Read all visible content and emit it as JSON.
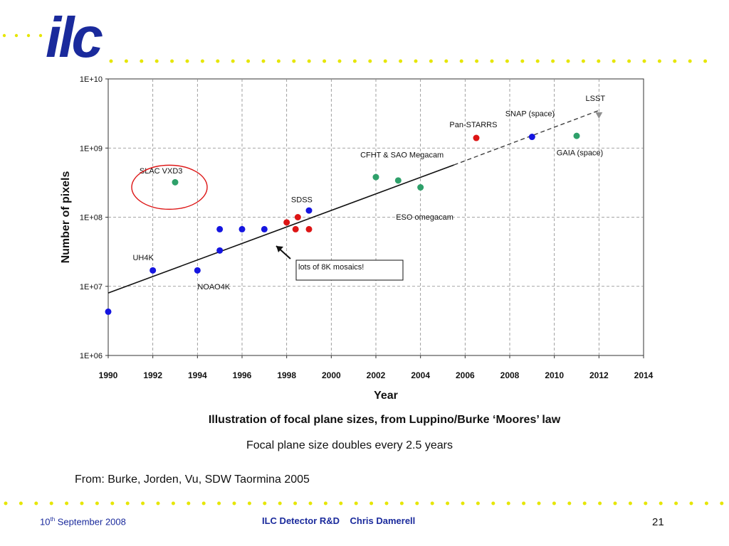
{
  "logo": {
    "text": "ilc"
  },
  "brand_colors": {
    "navy": "#1a2a9c",
    "dots": "#e6e600"
  },
  "chart_data": {
    "type": "scatter",
    "xlabel": "Year",
    "ylabel": "Number of pixels",
    "xlim": [
      1990,
      2014
    ],
    "ylim": [
      1000000,
      10000000000
    ],
    "yscale": "log",
    "grid": true,
    "x_ticks": [
      "1990",
      "1992",
      "1994",
      "1996",
      "1998",
      "2000",
      "2002",
      "2004",
      "2006",
      "2008",
      "2010",
      "2012",
      "2014"
    ],
    "y_ticks": [
      "1E+06",
      "1E+07",
      "1E+08",
      "1E+09",
      "1E+10"
    ],
    "points": [
      {
        "x": 1990,
        "y": 4300000,
        "color": "#1515e0"
      },
      {
        "x": 1992,
        "y": 17000000,
        "color": "#1515e0"
      },
      {
        "x": 1993,
        "y": 320000000,
        "color": "#2ea06a"
      },
      {
        "x": 1994,
        "y": 17000000,
        "color": "#1515e0"
      },
      {
        "x": 1995,
        "y": 33000000,
        "color": "#1515e0"
      },
      {
        "x": 1995,
        "y": 67000000,
        "color": "#1515e0"
      },
      {
        "x": 1996,
        "y": 67000000,
        "color": "#1515e0"
      },
      {
        "x": 1997,
        "y": 67000000,
        "color": "#1515e0"
      },
      {
        "x": 1998,
        "y": 84000000,
        "color": "#dd1515"
      },
      {
        "x": 1998.4,
        "y": 67000000,
        "color": "#dd1515"
      },
      {
        "x": 1998.5,
        "y": 100000000,
        "color": "#dd1515"
      },
      {
        "x": 1999,
        "y": 67000000,
        "color": "#dd1515"
      },
      {
        "x": 1999,
        "y": 125000000,
        "color": "#1515e0"
      },
      {
        "x": 2002,
        "y": 380000000,
        "color": "#2ea06a"
      },
      {
        "x": 2003,
        "y": 340000000,
        "color": "#2ea06a"
      },
      {
        "x": 2004,
        "y": 270000000,
        "color": "#2ea06a"
      },
      {
        "x": 2006.5,
        "y": 1400000000,
        "color": "#dd1515"
      },
      {
        "x": 2009,
        "y": 1450000000,
        "color": "#1515e0"
      },
      {
        "x": 2011,
        "y": 1500000000,
        "color": "#2ea06a"
      },
      {
        "x": 2012,
        "y": 3000000000,
        "color": "#909090",
        "marker": "triangle"
      }
    ],
    "trend_solid": [
      [
        1990,
        8000000
      ],
      [
        2005.5,
        570000000
      ]
    ],
    "trend_dashed": [
      [
        2005.5,
        570000000
      ],
      [
        2012,
        3500000000
      ]
    ],
    "annotations": [
      {
        "text": "SLAC VXD3",
        "x": 1991.4,
        "y": 430000000
      },
      {
        "text": "UH4K",
        "x": 1991.1,
        "y": 24000000
      },
      {
        "text": "NOAO4K",
        "x": 1994,
        "y": 9000000
      },
      {
        "text": "SDSS",
        "x": 1998.2,
        "y": 165000000
      },
      {
        "text": "CFHT & SAO Megacam",
        "x": 2001.3,
        "y": 730000000
      },
      {
        "text": "ESO omegacam",
        "x": 2002.9,
        "y": 92000000
      },
      {
        "text": "Pan-STARRS",
        "x": 2005.3,
        "y": 2000000000
      },
      {
        "text": "SNAP (space)",
        "x": 2007.8,
        "y": 2900000000
      },
      {
        "text": "LSST",
        "x": 2011.4,
        "y": 4800000000
      },
      {
        "text": "GAIA (space)",
        "x": 2010.1,
        "y": 780000000
      }
    ],
    "callout": "lots of 8K mosaics!",
    "highlight_label": "SLAC VXD3"
  },
  "captions": {
    "title": "Illustration of focal plane sizes, from Luppino/Burke ‘Moores’ law",
    "subtitle": "Focal plane size doubles every 2.5 years",
    "source": "From: Burke, Jorden, Vu,  SDW Taormina 2005"
  },
  "footer": {
    "date_day": "10",
    "date_suffix": "th",
    "date_rest": " September 2008",
    "title": "ILC Detector R&D    Chris Damerell",
    "page": "21"
  }
}
